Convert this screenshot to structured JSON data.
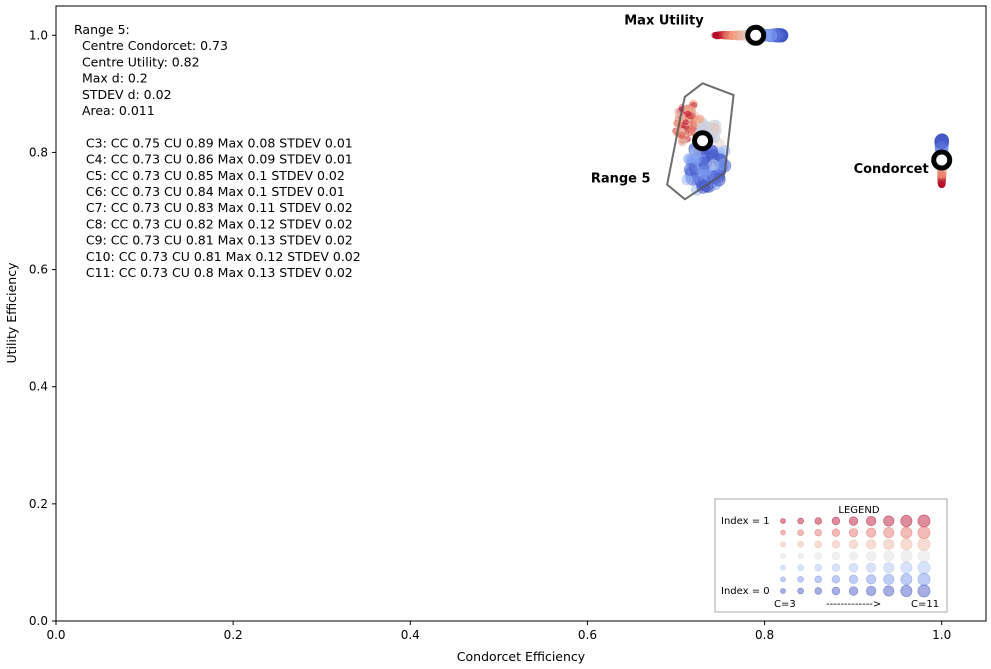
{
  "chart_data": {
    "type": "scatter",
    "xlabel": "Condorcet Efficiency",
    "ylabel": "Utility Efficiency",
    "xlim": [
      0,
      1.05
    ],
    "ylim": [
      0,
      1.05
    ],
    "xticks": [
      "0.0",
      "0.2",
      "0.4",
      "0.6",
      "0.8",
      "1.0"
    ],
    "yticks": [
      "0.0",
      "0.2",
      "0.4",
      "0.6",
      "0.8",
      "1.0"
    ],
    "info_lines": [
      "Range 5:",
      "  Centre Condorcet: 0.73",
      "  Centre Utility: 0.82",
      "  Max d: 0.2",
      "  STDEV d: 0.02",
      "  Area: 0.011",
      "",
      "   C3: CC 0.75 CU 0.89 Max 0.08 STDEV 0.01",
      "   C4: CC 0.73 CU 0.86 Max 0.09 STDEV 0.01",
      "   C5: CC 0.73 CU 0.85 Max 0.1 STDEV 0.02",
      "   C6: CC 0.73 CU 0.84 Max 0.1 STDEV 0.01",
      "   C7: CC 0.73 CU 0.83 Max 0.11 STDEV 0.02",
      "   C8: CC 0.73 CU 0.82 Max 0.12 STDEV 0.02",
      "   C9: CC 0.73 CU 0.81 Max 0.13 STDEV 0.02",
      "   C10: CC 0.73 CU 0.81 Max 0.12 STDEV 0.02",
      "   C11: CC 0.73 CU 0.8 Max 0.13 STDEV 0.02"
    ],
    "reference_points": [
      {
        "label": "Max Utility",
        "x": 0.79,
        "y": 1.0
      },
      {
        "label": "Condorcet",
        "x": 1.0,
        "y": 0.787
      },
      {
        "label": "Range 5",
        "x": 0.73,
        "y": 0.82
      }
    ],
    "hull": [
      [
        0.73,
        0.918
      ],
      [
        0.765,
        0.898
      ],
      [
        0.755,
        0.765
      ],
      [
        0.71,
        0.72
      ],
      [
        0.69,
        0.745
      ],
      [
        0.705,
        0.86
      ],
      [
        0.71,
        0.895
      ]
    ],
    "clusters": [
      {
        "name": "Max Utility",
        "x_range": [
          0.745,
          0.82
        ],
        "y_range": [
          0.998,
          1.002
        ]
      },
      {
        "name": "Condorcet",
        "x_range": [
          0.998,
          1.002
        ],
        "y_range": [
          0.745,
          0.82
        ]
      },
      {
        "name": "Range 5",
        "x_range": [
          0.69,
          0.77
        ],
        "y_range": [
          0.72,
          0.92
        ]
      }
    ],
    "colormap": "coolwarm",
    "legend": {
      "title": "LEGEND",
      "top_label": "Index = 1",
      "bottom_label": "Index = 0",
      "c_start": "C=3",
      "arrow": "------------->",
      "c_end": "C=11",
      "placement": "lower-right"
    },
    "grid": false
  }
}
